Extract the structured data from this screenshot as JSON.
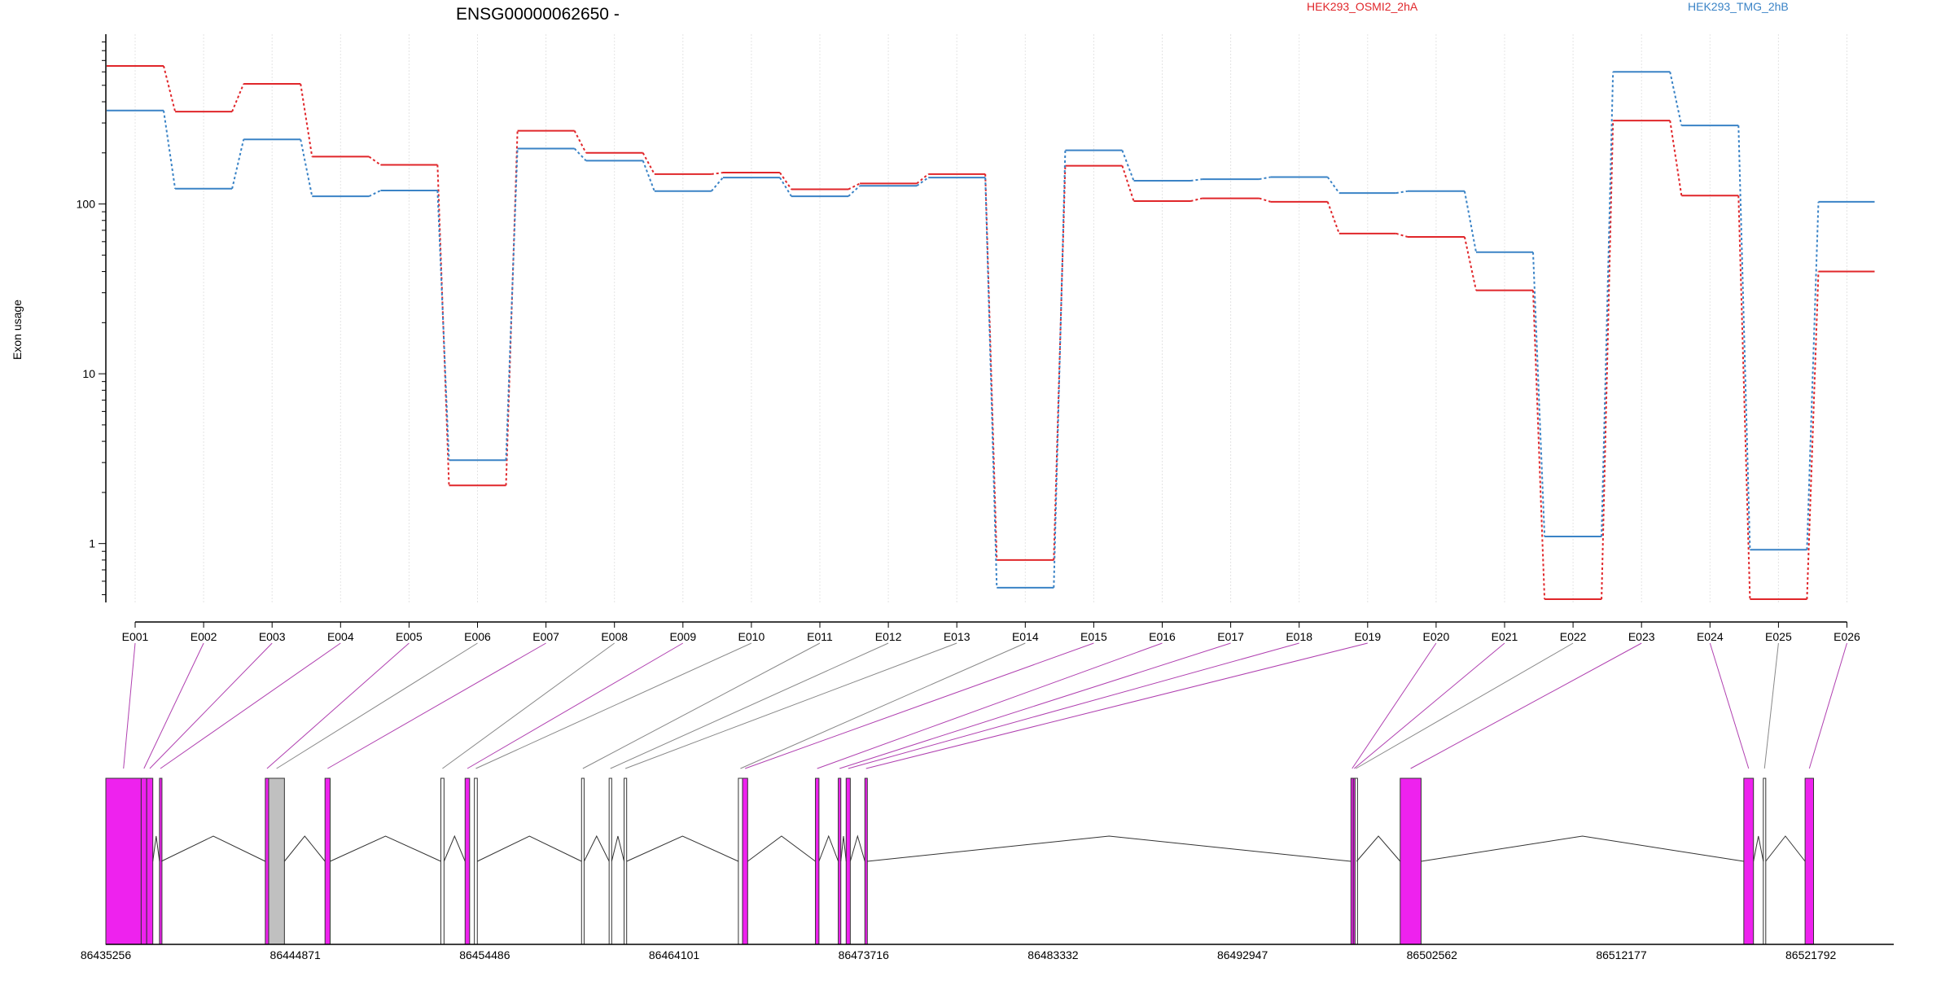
{
  "chart_data": {
    "type": "line",
    "title": "ENSG00000062650 -",
    "ylabel": "Exon usage",
    "xlabel": "",
    "y_scale": "log",
    "ylim": [
      0.45,
      1000
    ],
    "y_ticks": [
      1,
      10,
      100
    ],
    "grid": "vertical-only",
    "legend_placement": "top",
    "colors": {
      "series_a": "#e0262a",
      "series_b": "#3a83c6"
    },
    "categories": [
      "E001",
      "E002",
      "E003",
      "E004",
      "E005",
      "E006",
      "E007",
      "E008",
      "E009",
      "E010",
      "E011",
      "E012",
      "E013",
      "E014",
      "E015",
      "E016",
      "E017",
      "E018",
      "E019",
      "E020",
      "E021",
      "E022",
      "E023",
      "E024",
      "E025",
      "E026"
    ],
    "series": [
      {
        "name": "HEK293_OSMI2_2hA",
        "color": "#e0262a",
        "values": [
          650,
          350,
          510,
          190,
          170,
          2.2,
          270,
          200,
          150,
          153,
          122,
          132,
          150,
          0.8,
          168,
          104,
          108,
          103,
          67,
          64,
          31,
          0.47,
          310,
          112,
          0.47,
          40
        ]
      },
      {
        "name": "HEK293_TMG_2hB",
        "color": "#3a83c6",
        "values": [
          355,
          123,
          240,
          111,
          120,
          3.1,
          212,
          180,
          119,
          143,
          111,
          128,
          143,
          0.55,
          207,
          137,
          140,
          144,
          116,
          119,
          52,
          1.1,
          600,
          290,
          0.92,
          103
        ]
      }
    ],
    "gene_model": {
      "coordinate_range": [
        86435256,
        86526000
      ],
      "coordinate_ticks": [
        86435256,
        86444871,
        86454486,
        86464101,
        86473716,
        86483332,
        86492947,
        86502562,
        86512177,
        86521792
      ],
      "colors": {
        "differential": "#ee22ee",
        "normal": "#ffffff",
        "gray": "#c0c0c0",
        "link_differential": "#b040b0",
        "link_normal": "#888888"
      },
      "exons": [
        {
          "id": "E001",
          "start": 86435256,
          "end": 86437050,
          "status": "differential"
        },
        {
          "id": "E002",
          "start": 86437050,
          "end": 86437330,
          "status": "differential"
        },
        {
          "id": "E003",
          "start": 86437330,
          "end": 86437640,
          "status": "differential"
        },
        {
          "id": "E004",
          "start": 86437980,
          "end": 86438070,
          "status": "differential"
        },
        {
          "id": "E005",
          "start": 86443350,
          "end": 86443520,
          "status": "differential"
        },
        {
          "id": "E006",
          "start": 86443520,
          "end": 86444320,
          "status": "gray"
        },
        {
          "id": "E007",
          "start": 86446380,
          "end": 86446640,
          "status": "differential"
        },
        {
          "id": "E008",
          "start": 86452260,
          "end": 86452420,
          "status": "normal"
        },
        {
          "id": "E009",
          "start": 86453490,
          "end": 86453720,
          "status": "differential"
        },
        {
          "id": "E010",
          "start": 86453960,
          "end": 86454110,
          "status": "normal"
        },
        {
          "id": "E011",
          "start": 86459400,
          "end": 86459530,
          "status": "normal"
        },
        {
          "id": "E012",
          "start": 86460800,
          "end": 86460930,
          "status": "normal"
        },
        {
          "id": "E013",
          "start": 86461560,
          "end": 86461690,
          "status": "normal"
        },
        {
          "id": "E014",
          "start": 86467360,
          "end": 86467570,
          "status": "normal"
        },
        {
          "id": "E015",
          "start": 86467570,
          "end": 86467830,
          "status": "differential"
        },
        {
          "id": "E016",
          "start": 86471270,
          "end": 86471450,
          "status": "differential"
        },
        {
          "id": "E017",
          "start": 86472430,
          "end": 86472560,
          "status": "differential"
        },
        {
          "id": "E018",
          "start": 86472830,
          "end": 86473040,
          "status": "differential"
        },
        {
          "id": "E019",
          "start": 86473780,
          "end": 86473900,
          "status": "differential"
        },
        {
          "id": "E020",
          "start": 86498450,
          "end": 86498570,
          "status": "differential"
        },
        {
          "id": "E021",
          "start": 86498570,
          "end": 86498660,
          "status": "differential"
        },
        {
          "id": "E022",
          "start": 86498660,
          "end": 86498740,
          "status": "normal"
        },
        {
          "id": "E023",
          "start": 86500950,
          "end": 86502010,
          "status": "differential"
        },
        {
          "id": "E024",
          "start": 86518390,
          "end": 86518880,
          "status": "differential"
        },
        {
          "id": "E025",
          "start": 86519380,
          "end": 86519500,
          "status": "normal"
        },
        {
          "id": "E026",
          "start": 86521500,
          "end": 86521930,
          "status": "differential"
        }
      ]
    }
  }
}
